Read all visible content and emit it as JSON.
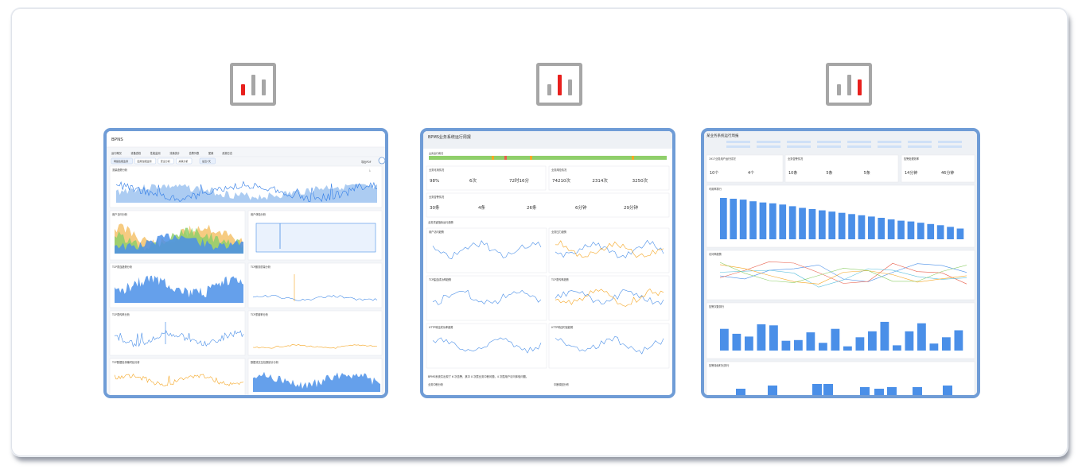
{
  "colors": {
    "icon_gray": "#a6a6a6",
    "icon_accent": "#e8201d",
    "frame_blue": "#6f9cd6",
    "chart_blue": "#4a8fe8",
    "chart_orange": "#f5a623",
    "chart_green": "#8fcf6a"
  },
  "report_icons": [
    {
      "name": "bar-chart-icon",
      "accent_bar": "left"
    },
    {
      "name": "bar-chart-icon",
      "accent_bar": "middle"
    },
    {
      "name": "bar-chart-icon",
      "accent_bar": "right"
    }
  ],
  "thumbnails": [
    {
      "title": "BPNS",
      "tabs": [
        "运行概况",
        "设备查权",
        "性能监测",
        "流量统计",
        "告警列表",
        "配置",
        "资源日志"
      ],
      "filters": [
        "网络性能监测",
        "应用性能监测",
        "安全分析",
        "关联分析",
        "最近7天"
      ],
      "export_label": "导出PDF",
      "sections": [
        "流量趋势分析",
        "用户访问分析",
        "用户体验分析",
        "TCP重连趋势分析",
        "TCP服务质量分析",
        "TCP重传率分析",
        "TCP重置率分析",
        "TCP数据包传输时延分析",
        "数据流交互包数统计分析"
      ]
    },
    {
      "title": "BPMS业务系统运行周报",
      "sections": [
        "业务运行概况",
        "业务可用情况",
        "业务风险情况",
        "业务告警情况",
        "业务关键指标运行趋势",
        "用户访问趋势",
        "业务压力趋势",
        "TCP建连成功率趋势",
        "TCP重传率趋势",
        "HTTP响应成功率趋势",
        "HTTP响应时延趋势"
      ],
      "kpis": [
        "98%",
        "6次",
        "72时16分",
        "74210次",
        "2314次",
        "3250次",
        "30条",
        "4条",
        "26条",
        "6分钟",
        "29分钟"
      ],
      "summary": "BPMS系统共出现了 6 次告警，其中 0 次属业务中断问题，4 次属用户访问体验问题。",
      "footer": [
        "业务中断分析",
        "中断原因分布"
      ]
    },
    {
      "title": "某业务系统运行周报",
      "sections": [
        "1917业务用户运行情况",
        "业务告警情况",
        "告警处理效率",
        "可用率排行",
        "访问率趋势",
        "告警次数排行",
        "告警持续时长排行"
      ],
      "kpis": [
        "10个",
        "4个",
        "10条",
        "5条",
        "5条",
        "14分钟",
        "46分钟"
      ]
    }
  ],
  "chart_data": [
    {
      "type": "bar",
      "title": "可用率排行",
      "values": [
        100,
        98,
        96,
        92,
        89,
        87,
        84,
        80,
        76,
        73,
        70,
        67,
        64,
        61,
        58,
        55,
        52,
        48,
        45,
        43,
        40,
        37,
        34,
        30,
        26
      ]
    },
    {
      "type": "bar",
      "title": "告警次数排行",
      "values": [
        62,
        48,
        40,
        75,
        72,
        28,
        30,
        52,
        22,
        62,
        12,
        38,
        55,
        82,
        15,
        55,
        78,
        20,
        38,
        58
      ]
    }
  ]
}
